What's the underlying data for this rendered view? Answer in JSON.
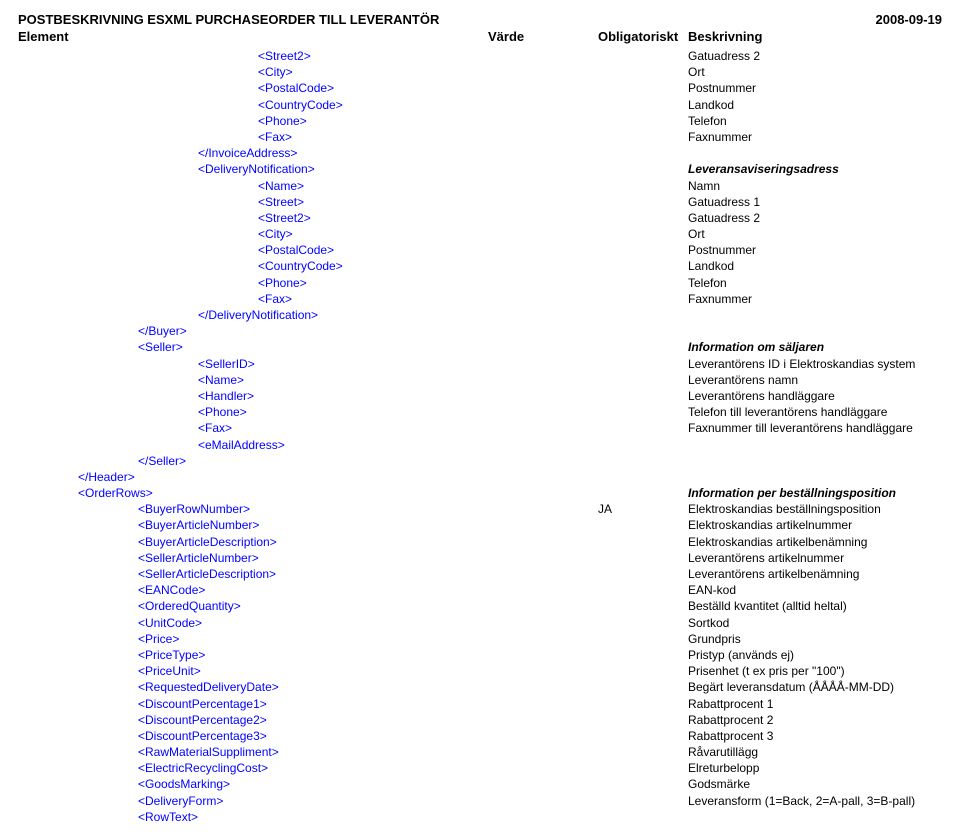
{
  "doc": {
    "title": "POSTBESKRIVNING ESXML PURCHASEORDER TILL LEVERANTÖR",
    "date": "2008-09-19",
    "headers": {
      "element": "Element",
      "value": "Värde",
      "oblig": "Obligatoriskt",
      "desc": "Beskrivning"
    }
  },
  "rows": [
    {
      "indent": 4,
      "el": "<Street2>",
      "desc": "Gatuadress 2"
    },
    {
      "indent": 4,
      "el": "<City>",
      "desc": "Ort"
    },
    {
      "indent": 4,
      "el": "<PostalCode>",
      "desc": "Postnummer"
    },
    {
      "indent": 4,
      "el": "<CountryCode>",
      "desc": "Landkod"
    },
    {
      "indent": 4,
      "el": "<Phone>",
      "desc": "Telefon"
    },
    {
      "indent": 4,
      "el": "<Fax>",
      "desc": "Faxnummer"
    },
    {
      "indent": 3,
      "el": "</InvoiceAddress>",
      "desc": ""
    },
    {
      "indent": 3,
      "el": "<DeliveryNotification>",
      "desc": "Leveransaviseringsadress",
      "strong": true
    },
    {
      "indent": 4,
      "el": "<Name>",
      "desc": "Namn"
    },
    {
      "indent": 4,
      "el": "<Street>",
      "desc": "Gatuadress 1"
    },
    {
      "indent": 4,
      "el": "<Street2>",
      "desc": "Gatuadress 2"
    },
    {
      "indent": 4,
      "el": "<City>",
      "desc": "Ort"
    },
    {
      "indent": 4,
      "el": "<PostalCode>",
      "desc": "Postnummer"
    },
    {
      "indent": 4,
      "el": "<CountryCode>",
      "desc": "Landkod"
    },
    {
      "indent": 4,
      "el": "<Phone>",
      "desc": "Telefon"
    },
    {
      "indent": 4,
      "el": "<Fax>",
      "desc": "Faxnummer"
    },
    {
      "indent": 3,
      "el": "</DeliveryNotification>",
      "desc": ""
    },
    {
      "indent": 2,
      "el": "</Buyer>",
      "desc": ""
    },
    {
      "indent": 2,
      "el": "<Seller>",
      "desc": "Information om säljaren",
      "strong": true
    },
    {
      "indent": 3,
      "el": "<SellerID>",
      "desc": "Leverantörens ID i Elektroskandias system"
    },
    {
      "indent": 3,
      "el": "<Name>",
      "desc": "Leverantörens namn"
    },
    {
      "indent": 3,
      "el": "<Handler>",
      "desc": "Leverantörens handläggare"
    },
    {
      "indent": 3,
      "el": "<Phone>",
      "desc": "Telefon till leverantörens handläggare"
    },
    {
      "indent": 3,
      "el": "<Fax>",
      "desc": "Faxnummer till leverantörens handläggare"
    },
    {
      "indent": 3,
      "el": "<eMailAddress>",
      "desc": ""
    },
    {
      "indent": 2,
      "el": "</Seller>",
      "desc": ""
    },
    {
      "indent": 1,
      "el": "</Header>",
      "desc": ""
    },
    {
      "indent": 1,
      "el": "<OrderRows>",
      "desc": "Information per beställningsposition",
      "strong": true
    },
    {
      "indent": 2,
      "el": "<BuyerRowNumber>",
      "oblig": "JA",
      "desc": "Elektroskandias beställningsposition"
    },
    {
      "indent": 2,
      "el": "<BuyerArticleNumber>",
      "desc": "Elektroskandias artikelnummer"
    },
    {
      "indent": 2,
      "el": "<BuyerArticleDescription>",
      "desc": "Elektroskandias artikelbenämning"
    },
    {
      "indent": 2,
      "el": "<SellerArticleNumber>",
      "desc": "Leverantörens artikelnummer"
    },
    {
      "indent": 2,
      "el": "<SellerArticleDescription>",
      "desc": "Leverantörens artikelbenämning"
    },
    {
      "indent": 2,
      "el": "<EANCode>",
      "desc": "EAN-kod"
    },
    {
      "indent": 2,
      "el": "<OrderedQuantity>",
      "desc": "Beställd kvantitet (alltid heltal)"
    },
    {
      "indent": 2,
      "el": "<UnitCode>",
      "desc": "Sortkod"
    },
    {
      "indent": 2,
      "el": "<Price>",
      "desc": "Grundpris"
    },
    {
      "indent": 2,
      "el": "<PriceType>",
      "desc": "Pristyp (används ej)"
    },
    {
      "indent": 2,
      "el": "<PriceUnit>",
      "desc": "Prisenhet (t ex pris per \"100\")"
    },
    {
      "indent": 2,
      "el": "<RequestedDeliveryDate>",
      "desc": "Begärt leveransdatum (ÅÅÅÅ-MM-DD)"
    },
    {
      "indent": 2,
      "el": "<DiscountPercentage1>",
      "desc": "Rabattprocent 1"
    },
    {
      "indent": 2,
      "el": "<DiscountPercentage2>",
      "desc": "Rabattprocent 2"
    },
    {
      "indent": 2,
      "el": "<DiscountPercentage3>",
      "desc": "Rabattprocent 3"
    },
    {
      "indent": 2,
      "el": "<RawMaterialSuppliment>",
      "desc": "Råvarutillägg"
    },
    {
      "indent": 2,
      "el": "<ElectricRecyclingCost>",
      "desc": "Elreturbelopp"
    },
    {
      "indent": 2,
      "el": "<GoodsMarking>",
      "desc": "Godsmärke"
    },
    {
      "indent": 2,
      "el": "<DeliveryForm>",
      "desc": "Leveransform (1=Back, 2=A-pall, 3=B-pall)"
    },
    {
      "indent": 2,
      "el": "<RowText>",
      "desc": ""
    }
  ]
}
